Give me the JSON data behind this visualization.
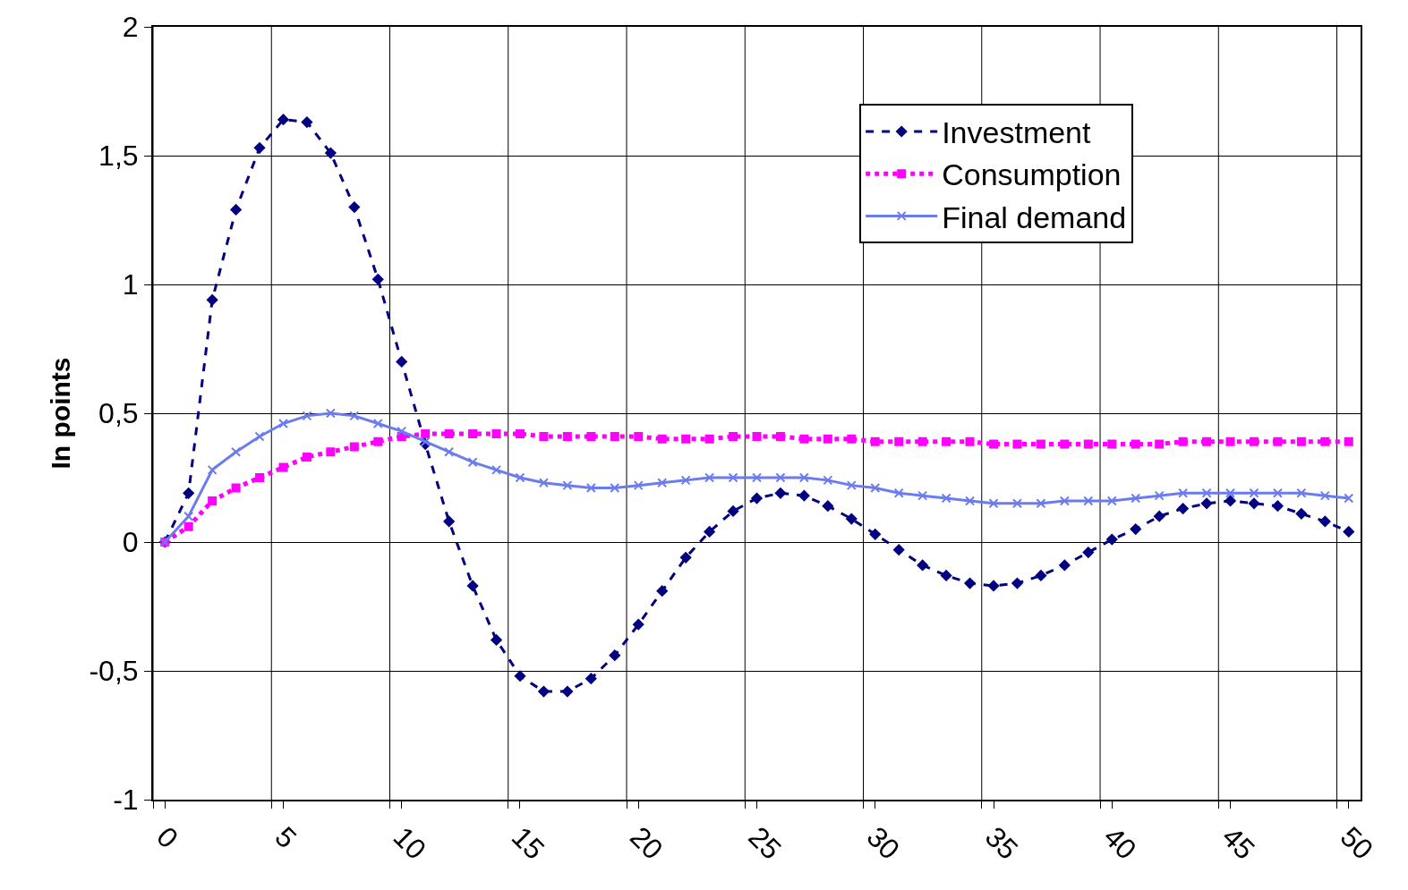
{
  "chart_data": {
    "type": "line",
    "ylabel": "In points",
    "x": [
      0,
      1,
      2,
      3,
      4,
      5,
      6,
      7,
      8,
      9,
      10,
      11,
      12,
      13,
      14,
      15,
      16,
      17,
      18,
      19,
      20,
      21,
      22,
      23,
      24,
      25,
      26,
      27,
      28,
      29,
      30,
      31,
      32,
      33,
      34,
      35,
      36,
      37,
      38,
      39,
      40,
      41,
      42,
      43,
      44,
      45,
      46,
      47,
      48,
      49,
      50
    ],
    "series": [
      {
        "name": "Investment",
        "color": "#000080",
        "marker": "diamond",
        "line_style": "dashed",
        "values": [
          0,
          0.19,
          0.94,
          1.29,
          1.53,
          1.64,
          1.63,
          1.51,
          1.3,
          1.02,
          0.7,
          0.38,
          0.08,
          -0.17,
          -0.38,
          -0.52,
          -0.58,
          -0.58,
          -0.53,
          -0.44,
          -0.32,
          -0.19,
          -0.06,
          0.04,
          0.12,
          0.17,
          0.19,
          0.18,
          0.14,
          0.09,
          0.03,
          -0.03,
          -0.09,
          -0.13,
          -0.16,
          -0.17,
          -0.16,
          -0.13,
          -0.09,
          -0.04,
          0.01,
          0.05,
          0.1,
          0.13,
          0.15,
          0.16,
          0.15,
          0.14,
          0.11,
          0.08,
          0.04
        ]
      },
      {
        "name": "Consumption",
        "color": "#ff00ff",
        "marker": "square",
        "line_style": "dotted",
        "values": [
          0,
          0.06,
          0.16,
          0.21,
          0.25,
          0.29,
          0.33,
          0.35,
          0.37,
          0.39,
          0.41,
          0.42,
          0.42,
          0.42,
          0.42,
          0.42,
          0.41,
          0.41,
          0.41,
          0.41,
          0.41,
          0.4,
          0.4,
          0.4,
          0.41,
          0.41,
          0.41,
          0.4,
          0.4,
          0.4,
          0.39,
          0.39,
          0.39,
          0.39,
          0.39,
          0.38,
          0.38,
          0.38,
          0.38,
          0.38,
          0.38,
          0.38,
          0.38,
          0.39,
          0.39,
          0.39,
          0.39,
          0.39,
          0.39,
          0.39,
          0.39
        ]
      },
      {
        "name": "Final demand",
        "color": "#6b7bf0",
        "marker": "cross",
        "line_style": "solid",
        "values": [
          0,
          0.1,
          0.28,
          0.35,
          0.41,
          0.46,
          0.49,
          0.5,
          0.49,
          0.46,
          0.43,
          0.39,
          0.35,
          0.31,
          0.28,
          0.25,
          0.23,
          0.22,
          0.21,
          0.21,
          0.22,
          0.23,
          0.24,
          0.25,
          0.25,
          0.25,
          0.25,
          0.25,
          0.24,
          0.22,
          0.21,
          0.19,
          0.18,
          0.17,
          0.16,
          0.15,
          0.15,
          0.15,
          0.16,
          0.16,
          0.16,
          0.17,
          0.18,
          0.19,
          0.19,
          0.19,
          0.19,
          0.19,
          0.19,
          0.18,
          0.17
        ]
      }
    ],
    "xlim": [
      -0.5,
      50.5
    ],
    "xticks": [
      0,
      5,
      10,
      15,
      20,
      25,
      30,
      35,
      40,
      45,
      50,
      {
        "value": -0.5,
        "label": null
      },
      {
        "value": 4.5,
        "label": null
      },
      {
        "value": 9.5,
        "label": null
      },
      {
        "value": 14.5,
        "label": null
      },
      {
        "value": 19.5,
        "label": null
      },
      {
        "value": 24.5,
        "label": null
      },
      {
        "value": 29.5,
        "label": null
      },
      {
        "value": 34.5,
        "label": null
      },
      {
        "value": 39.5,
        "label": null
      },
      {
        "value": 44.5,
        "label": null
      },
      {
        "value": 49.5,
        "label": null
      }
    ],
    "ylim": [
      -1,
      2
    ],
    "yticks": [
      {
        "value": -1,
        "label": "-1"
      },
      {
        "value": -0.5,
        "label": "-0,5"
      },
      0,
      {
        "value": 0.5,
        "label": "0,5"
      },
      1,
      {
        "value": 1.5,
        "label": "1,5"
      },
      2
    ],
    "grid": true,
    "legend": "top right"
  }
}
